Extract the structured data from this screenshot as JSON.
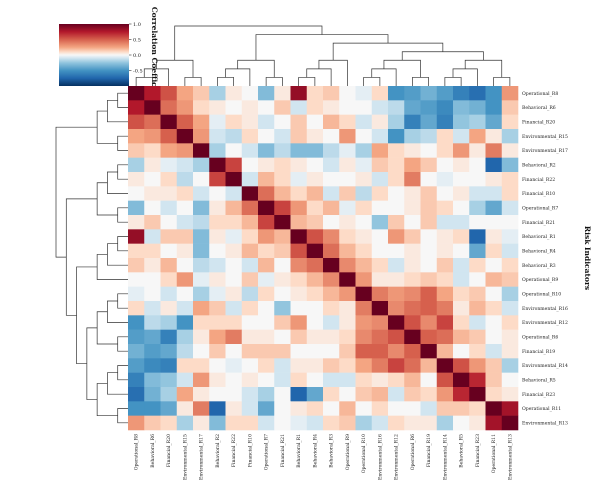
{
  "chart_data": {
    "type": "heatmap",
    "variant": "clustermap",
    "ylabel": "Risk Indicators",
    "colorbar": {
      "label": "Correlation Coefficient",
      "range": [
        -1,
        1
      ],
      "ticks": [
        1,
        0.5,
        0,
        -0.5
      ],
      "tick_labels": [
        "1.0",
        "0.5",
        "0.0",
        "-0.5"
      ],
      "colormap": "RdBu_r"
    },
    "colors": {
      "pos": "#67001f",
      "mid": "#f7f7f7",
      "neg": "#053061"
    },
    "labels": [
      "Operational_R8",
      "Behavioral_R6",
      "Financial_R20",
      "Environmental_R15",
      "Environmental_R17",
      "Behavioral_R2",
      "Financial_R22",
      "Financial_R10",
      "Operational_R7",
      "Financial_R21",
      "Behavioral_R1",
      "Behavioral_R4",
      "Behavioral_R3",
      "Operational_R9",
      "Operational_R10",
      "Environmental_R16",
      "Environmental_R12",
      "Operational_R6",
      "Financial_R19",
      "Environmental_R14",
      "Behavioral_R5",
      "Financial_R23",
      "Operational_R11",
      "Environmental_R13"
    ],
    "upper": [
      [
        0.75,
        0.55,
        0.25,
        0.15,
        -0.2,
        0.05,
        0.0,
        -0.3,
        0.05,
        0.85,
        0.1,
        0.15,
        0.0,
        -0.05,
        0.1,
        -0.5,
        -0.45,
        -0.35,
        -0.45,
        -0.6,
        -0.7,
        -0.5,
        0.3
      ],
      [
        0.45,
        0.3,
        0.1,
        0.05,
        0.0,
        0.05,
        0.0,
        0.15,
        -0.1,
        0.1,
        0.05,
        0.0,
        0.0,
        -0.1,
        -0.15,
        -0.4,
        -0.45,
        -0.55,
        -0.3,
        -0.35,
        -0.5,
        0.15
      ],
      [
        0.5,
        0.25,
        -0.05,
        0.1,
        0.05,
        -0.1,
        0.0,
        0.15,
        0.0,
        0.2,
        0.1,
        -0.1,
        0.05,
        -0.2,
        -0.6,
        -0.4,
        -0.6,
        -0.25,
        -0.2,
        -0.4,
        0.1
      ],
      [
        0.3,
        -0.1,
        -0.15,
        0.1,
        0.0,
        -0.1,
        0.15,
        0.05,
        0.0,
        0.3,
        0.0,
        -0.1,
        -0.5,
        -0.2,
        -0.15,
        0.1,
        -0.1,
        0.25,
        0.05,
        -0.2
      ],
      [
        -0.2,
        0.0,
        -0.1,
        -0.3,
        -0.15,
        -0.3,
        -0.3,
        -0.15,
        -0.05,
        -0.2,
        0.25,
        0.1,
        0.05,
        0.0,
        0.1,
        0.3,
        0.05,
        0.4,
        0.05
      ],
      [
        0.6,
        0.0,
        0.05,
        0.1,
        0.05,
        0.0,
        -0.1,
        0.05,
        -0.05,
        0.15,
        0.1,
        0.25,
        0.15,
        0.0,
        0.05,
        0.0,
        -0.75,
        -0.3
      ],
      [
        -0.1,
        0.2,
        0.1,
        -0.05,
        0.05,
        0.0,
        0.0,
        0.05,
        -0.1,
        0.1,
        0.4,
        0.0,
        -0.05,
        0.0,
        0.0,
        0.05,
        0.1
      ],
      [
        0.45,
        0.2,
        0.1,
        0.2,
        -0.1,
        0.15,
        -0.15,
        0.1,
        0.0,
        0.05,
        0.15,
        0.0,
        0.05,
        -0.1,
        -0.1,
        0.1
      ],
      [
        0.6,
        0.3,
        0.1,
        0.2,
        -0.05,
        0.1,
        0.0,
        0.0,
        0.05,
        0.15,
        0.1,
        0.0,
        -0.2,
        -0.4,
        -0.1
      ],
      [
        0.2,
        0.15,
        0.0,
        0.05,
        0.0,
        -0.25,
        0.15,
        0.0,
        0.15,
        -0.1,
        -0.1,
        0.0,
        0.0,
        0.0
      ],
      [
        0.55,
        0.35,
        0.1,
        0.05,
        0.0,
        0.3,
        0.15,
        0.0,
        0.05,
        0.1,
        -0.75,
        0.05,
        -0.05
      ],
      [
        0.45,
        0.2,
        0.1,
        0.0,
        0.0,
        0.05,
        0.0,
        0.05,
        0.0,
        -0.4,
        0.1,
        -0.1
      ],
      [
        0.35,
        0.2,
        0.1,
        -0.1,
        0.05,
        0.0,
        0.15,
        -0.1,
        0.1,
        0.0,
        0.1
      ],
      [
        0.3,
        0.05,
        0.05,
        0.1,
        0.15,
        0.1,
        -0.1,
        0.0,
        0.2,
        0.15
      ],
      [
        0.4,
        0.3,
        0.35,
        0.5,
        0.25,
        0.1,
        0.15,
        0.0,
        -0.2
      ],
      [
        0.35,
        0.45,
        0.5,
        0.4,
        0.05,
        0.2,
        0.1,
        -0.1
      ],
      [
        0.55,
        0.35,
        0.6,
        0.1,
        -0.1,
        0.0,
        0.1
      ],
      [
        0.5,
        0.45,
        0.2,
        0.15,
        0.0,
        0.05
      ],
      [
        0.2,
        0.0,
        0.1,
        -0.1,
        0.05
      ],
      [
        0.55,
        0.3,
        0.15,
        -0.2
      ],
      [
        0.7,
        0.15,
        0.0
      ],
      [
        0.1,
        0.05
      ],
      [
        0.8
      ]
    ]
  }
}
